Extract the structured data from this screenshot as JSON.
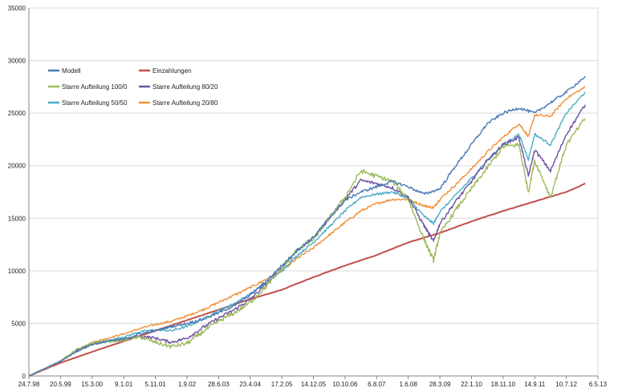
{
  "chart_data": {
    "type": "line",
    "title": "",
    "xlabel": "",
    "ylabel": "",
    "ylim": [
      0,
      35000
    ],
    "y_ticks": [
      0,
      5000,
      10000,
      15000,
      20000,
      25000,
      30000,
      35000
    ],
    "x_tick_labels": [
      "24.7.98",
      "20.5.99",
      "15.3.00",
      "9.1.01",
      "5.11.01",
      "1.9.02",
      "28.6.03",
      "23.4.04",
      "17.2.05",
      "14.12.05",
      "10.10.06",
      "6.8.07",
      "1.6.08",
      "28.3.09",
      "22.1.10",
      "18.11.10",
      "14.9.11",
      "10.7.12",
      "6.5.13"
    ],
    "grid": "horizontal",
    "legend_position": "top-left inside",
    "series": [
      {
        "name": "Modell",
        "color": "#4a7ab5",
        "x": [
          0,
          1,
          1.5,
          2,
          2.5,
          3,
          3.5,
          4,
          4.5,
          5,
          5.5,
          6,
          6.5,
          7,
          7.5,
          8,
          8.5,
          9,
          9.5,
          10,
          10.5,
          11,
          11.5,
          12,
          12.5,
          13,
          13.5,
          14,
          14.5,
          15,
          15.5,
          16,
          16.5,
          17,
          17.6
        ],
        "values": [
          0,
          1400,
          2300,
          3000,
          3300,
          3500,
          4000,
          4300,
          4700,
          5000,
          5400,
          6000,
          6700,
          7700,
          9000,
          10500,
          12000,
          13200,
          15000,
          16700,
          17500,
          18000,
          18500,
          18000,
          17300,
          17800,
          20000,
          22000,
          24000,
          25000,
          25500,
          25000,
          26000,
          27000,
          28500
        ]
      },
      {
        "name": "Einzahlungen",
        "color": "#c0504d",
        "x": [
          0,
          1,
          2,
          3,
          4,
          5,
          6,
          7,
          8,
          9,
          10,
          11,
          12,
          13,
          14,
          15,
          16,
          17,
          17.6
        ],
        "values": [
          0,
          1250,
          2300,
          3300,
          4300,
          5300,
          6300,
          7300,
          8200,
          9400,
          10500,
          11500,
          12700,
          13600,
          14700,
          15700,
          16600,
          17500,
          18300
        ]
      },
      {
        "name": "Starre Aufteilung 100/0",
        "color": "#9bbb59",
        "x": [
          0,
          1,
          1.5,
          2,
          2.5,
          3,
          3.5,
          4,
          4.5,
          5,
          5.5,
          6,
          6.5,
          7,
          7.5,
          8,
          8.5,
          9,
          9.5,
          10,
          10.5,
          11,
          11.5,
          12,
          12.5,
          12.8,
          13,
          13.5,
          14,
          14.5,
          15,
          15.5,
          15.8,
          16,
          16.5,
          17,
          17.6
        ],
        "values": [
          0,
          1400,
          2500,
          3100,
          3300,
          3400,
          3700,
          3200,
          2800,
          3100,
          4200,
          5200,
          6000,
          7000,
          8500,
          10200,
          12000,
          13000,
          15000,
          17000,
          19500,
          19000,
          18500,
          16800,
          13000,
          11000,
          13500,
          15800,
          17800,
          19800,
          21800,
          22000,
          17500,
          20500,
          17000,
          22000,
          24500
        ]
      },
      {
        "name": "Starre Aufteilung 80/20",
        "color": "#7050a0",
        "x": [
          0,
          1,
          1.5,
          2,
          2.5,
          3,
          3.5,
          4,
          4.5,
          5,
          5.5,
          6,
          6.5,
          7,
          7.5,
          8,
          8.5,
          9,
          9.5,
          10,
          10.5,
          11,
          11.5,
          12,
          12.5,
          12.8,
          13,
          13.5,
          14,
          14.5,
          15,
          15.5,
          15.8,
          16,
          16.5,
          17,
          17.6
        ],
        "values": [
          0,
          1400,
          2400,
          3000,
          3300,
          3450,
          3800,
          3600,
          3200,
          3600,
          4600,
          5500,
          6300,
          7300,
          8700,
          10300,
          12000,
          13100,
          15000,
          16800,
          18600,
          18300,
          17900,
          17000,
          14300,
          12800,
          14500,
          16600,
          18500,
          20500,
          22000,
          22700,
          19000,
          21500,
          19500,
          23000,
          25800
        ]
      },
      {
        "name": "Starre Aufteilung 50/50",
        "color": "#4bacc6",
        "x": [
          0,
          1,
          1.5,
          2,
          2.5,
          3,
          3.5,
          4,
          4.5,
          5,
          5.5,
          6,
          6.5,
          7,
          7.5,
          8,
          8.5,
          9,
          9.5,
          10,
          10.5,
          11,
          11.5,
          12,
          12.5,
          12.8,
          13,
          13.5,
          14,
          14.5,
          15,
          15.5,
          15.8,
          16,
          16.5,
          17,
          17.6
        ],
        "values": [
          0,
          1400,
          2400,
          3100,
          3400,
          3700,
          4200,
          4400,
          4300,
          4700,
          5400,
          6200,
          6900,
          7800,
          8800,
          10000,
          11500,
          12700,
          14200,
          15700,
          17000,
          17300,
          17500,
          16900,
          15200,
          14500,
          15600,
          17200,
          18800,
          20500,
          22000,
          23000,
          20600,
          23000,
          22000,
          25000,
          27000
        ]
      },
      {
        "name": "Starre Aufteilung 20/80",
        "color": "#f0913a",
        "x": [
          0,
          1,
          1.5,
          2,
          2.5,
          3,
          3.5,
          4,
          4.5,
          5,
          5.5,
          6,
          6.5,
          7,
          7.5,
          8,
          8.5,
          9,
          9.5,
          10,
          10.5,
          11,
          11.5,
          12,
          12.5,
          12.8,
          13,
          13.5,
          14,
          14.5,
          15,
          15.5,
          15.8,
          16,
          16.5,
          17,
          17.6
        ],
        "values": [
          0,
          1400,
          2400,
          3200,
          3600,
          4000,
          4500,
          4900,
          5200,
          5700,
          6300,
          7000,
          7700,
          8400,
          9200,
          10000,
          11200,
          12200,
          13400,
          14600,
          15700,
          16400,
          16800,
          16800,
          16200,
          16000,
          16800,
          18200,
          19700,
          21300,
          22700,
          24000,
          22800,
          24800,
          24700,
          26400,
          27500
        ]
      }
    ],
    "legend": [
      {
        "label": "Modell",
        "color": "#4a7ab5"
      },
      {
        "label": "Einzahlungen",
        "color": "#c0504d"
      },
      {
        "label": "Starre Aufteilung 100/0",
        "color": "#9bbb59"
      },
      {
        "label": "Starre Aufteilung 80/20",
        "color": "#7050a0"
      },
      {
        "label": "Starre Aufteilung 50/50",
        "color": "#4bacc6"
      },
      {
        "label": "Starre Aufteilung 20/80",
        "color": "#f0913a"
      }
    ]
  }
}
